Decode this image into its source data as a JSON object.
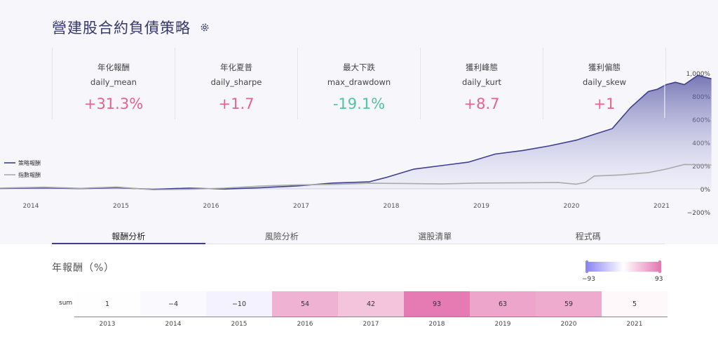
{
  "title": "營建股合約負債策略",
  "metrics": [
    {
      "label": "年化報酬",
      "key": "daily_mean",
      "value": "+31.3%",
      "tone": "pos"
    },
    {
      "label": "年化夏普",
      "key": "daily_sharpe",
      "value": "+1.7",
      "tone": "pos"
    },
    {
      "label": "最大下跌",
      "key": "max_drawdown",
      "value": "-19.1%",
      "tone": "neg"
    },
    {
      "label": "獲利峰態",
      "key": "daily_kurt",
      "value": "+8.7",
      "tone": "pos"
    },
    {
      "label": "獲利偏態",
      "key": "daily_skew",
      "value": "+1",
      "tone": "pos"
    }
  ],
  "tabs": [
    "報酬分析",
    "風險分析",
    "選股清單",
    "程式碼"
  ],
  "active_tab": 0,
  "chart_data": [
    {
      "type": "area",
      "legend": [
        "策略報酬",
        "指數報酬"
      ],
      "x_ticks": [
        "2014",
        "2015",
        "2016",
        "2017",
        "2018",
        "2019",
        "2020",
        "2021"
      ],
      "y_ticks": [
        "1,000%",
        "800%",
        "600%",
        "400%",
        "200%",
        "0%",
        "−200%"
      ],
      "ylim": [
        -200,
        1000
      ],
      "colors": {
        "strategy": "#3f3f8f",
        "index": "#aaaaaa"
      },
      "series": [
        {
          "name": "策略報酬",
          "x": [
            2013.4,
            2013.8,
            2014.2,
            2014.6,
            2015.0,
            2015.4,
            2015.8,
            2016.2,
            2016.6,
            2017.0,
            2017.4,
            2017.8,
            2018.0,
            2018.3,
            2018.6,
            2018.9,
            2019.2,
            2019.5,
            2019.8,
            2020.1,
            2020.3,
            2020.5,
            2020.7,
            2020.9,
            2021.0,
            2021.1,
            2021.2,
            2021.3,
            2021.45,
            2021.6
          ],
          "values": [
            0,
            4,
            8,
            2,
            10,
            -4,
            6,
            -2,
            10,
            25,
            50,
            60,
            100,
            170,
            200,
            230,
            300,
            330,
            370,
            420,
            470,
            520,
            700,
            840,
            860,
            900,
            920,
            900,
            980,
            950
          ]
        },
        {
          "name": "指數報酬",
          "x": [
            2013.4,
            2013.8,
            2014.2,
            2014.6,
            2015.0,
            2015.4,
            2015.8,
            2016.2,
            2016.6,
            2017.0,
            2017.4,
            2017.8,
            2018.2,
            2018.6,
            2019.0,
            2019.5,
            2019.9,
            2020.1,
            2020.2,
            2020.3,
            2020.6,
            2020.9,
            2021.1,
            2021.3,
            2021.6
          ],
          "values": [
            0,
            8,
            14,
            4,
            16,
            -8,
            -4,
            6,
            24,
            34,
            38,
            48,
            46,
            42,
            50,
            52,
            54,
            40,
            55,
            110,
            120,
            140,
            170,
            210,
            205
          ]
        }
      ]
    },
    {
      "type": "heatmap",
      "title": "年報酬（%）",
      "row_label": "sum",
      "categories": [
        "2013",
        "2014",
        "2015",
        "2016",
        "2017",
        "2018",
        "2019",
        "2020",
        "2021"
      ],
      "values": [
        1,
        -4,
        -10,
        54,
        42,
        93,
        63,
        59,
        5
      ],
      "value_labels": [
        "1",
        "−4",
        "−10",
        "54",
        "42",
        "93",
        "63",
        "59",
        "5"
      ],
      "scale_min_label": "−93",
      "scale_max_label": "93",
      "colors": {
        "low": "#8c86f2",
        "mid": "#ffffff",
        "high": "#e67ab2"
      }
    }
  ]
}
